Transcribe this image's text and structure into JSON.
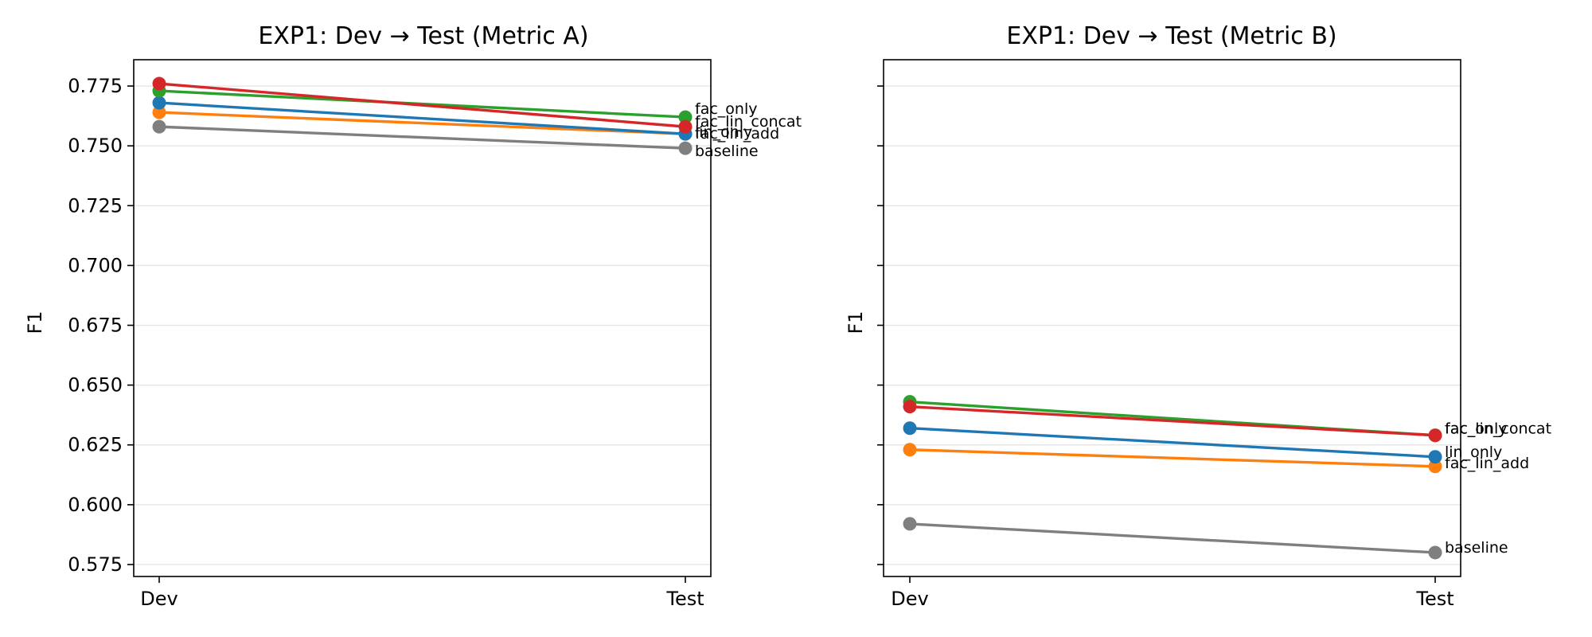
{
  "chart_data": [
    {
      "type": "line",
      "title": "EXP1: Dev → Test (Metric A)",
      "xlabel": "",
      "ylabel": "F1",
      "categories": [
        "Dev",
        "Test"
      ],
      "ylim": [
        0.57,
        0.786
      ],
      "yticks": [
        "0.575",
        "0.600",
        "0.625",
        "0.650",
        "0.675",
        "0.700",
        "0.725",
        "0.750",
        "0.775"
      ],
      "grid": "horizontal",
      "series": [
        {
          "name": "baseline",
          "color": "#7f7f7f",
          "values": [
            0.758,
            0.749
          ]
        },
        {
          "name": "fac_lin_add",
          "color": "#ff7f0e",
          "values": [
            0.764,
            0.755
          ]
        },
        {
          "name": "lin_only",
          "color": "#1f77b4",
          "values": [
            0.768,
            0.755
          ]
        },
        {
          "name": "fac_only",
          "color": "#2ca02c",
          "values": [
            0.773,
            0.762
          ]
        },
        {
          "name": "fac_lin_concat",
          "color": "#d62728",
          "values": [
            0.776,
            0.758
          ]
        }
      ]
    },
    {
      "type": "line",
      "title": "EXP1: Dev → Test (Metric B)",
      "xlabel": "",
      "ylabel": "F1",
      "categories": [
        "Dev",
        "Test"
      ],
      "ylim": [
        0.57,
        0.786
      ],
      "yticks": [
        "0.575",
        "0.600",
        "0.625",
        "0.650",
        "0.675",
        "0.700",
        "0.725",
        "0.750",
        "0.775"
      ],
      "grid": "horizontal",
      "series": [
        {
          "name": "baseline",
          "color": "#7f7f7f",
          "values": [
            0.592,
            0.58
          ]
        },
        {
          "name": "fac_lin_add",
          "color": "#ff7f0e",
          "values": [
            0.623,
            0.616
          ]
        },
        {
          "name": "lin_only",
          "color": "#1f77b4",
          "values": [
            0.632,
            0.62
          ]
        },
        {
          "name": "fac_only",
          "color": "#2ca02c",
          "values": [
            0.643,
            0.629
          ]
        },
        {
          "name": "fac_lin_concat",
          "color": "#d62728",
          "values": [
            0.641,
            0.629
          ]
        }
      ]
    }
  ]
}
